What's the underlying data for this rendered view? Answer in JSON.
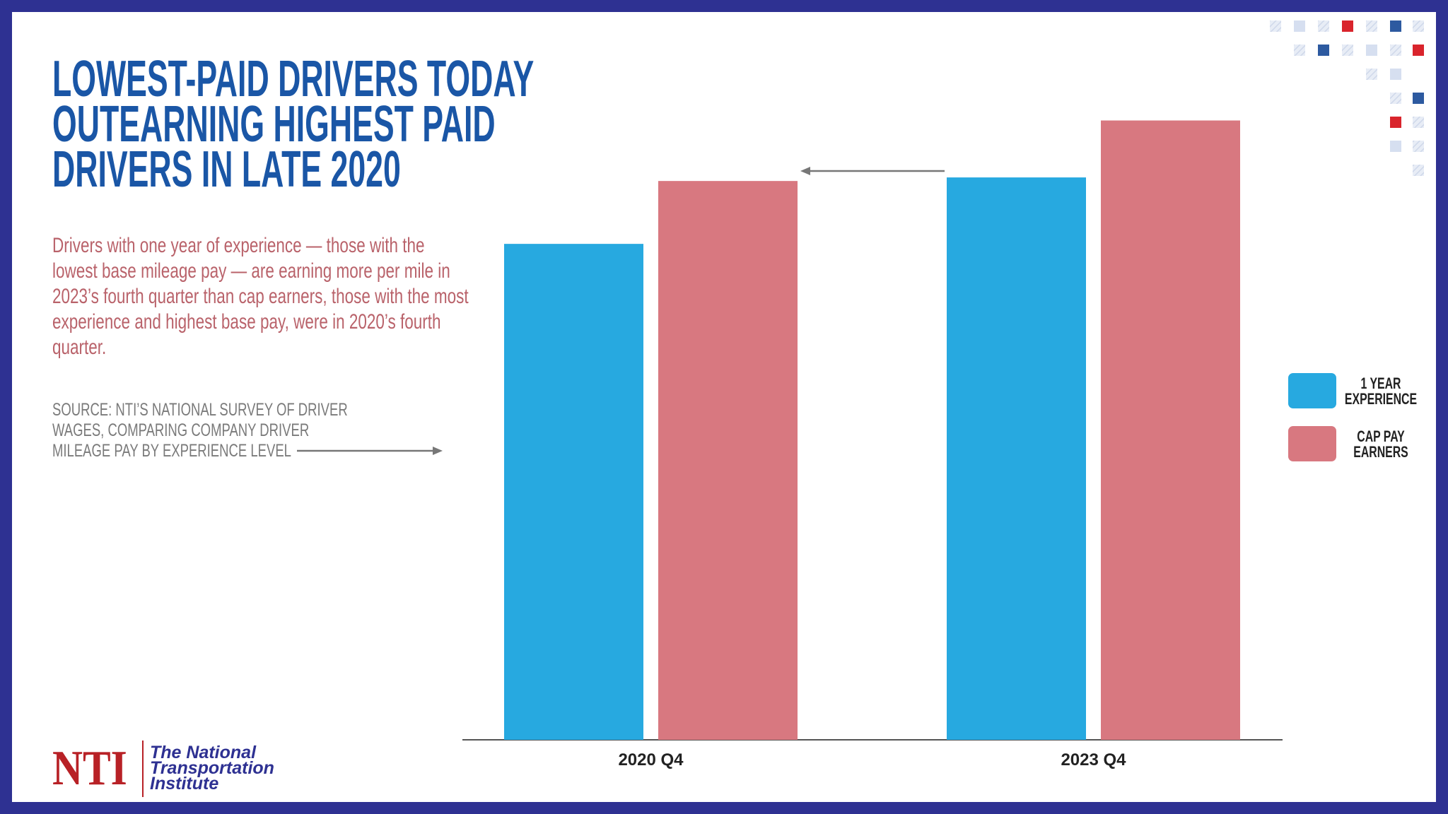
{
  "chart_data": {
    "type": "bar",
    "title": "LOWEST-PAID DRIVERS TODAY OUTEARNING HIGHEST PAID DRIVERS IN LATE 2020",
    "description": "Drivers with one year of experience — those with the lowest base mileage pay — are earning more per mile in 2023’s fourth quarter than cap earners, those with the most experience and highest base pay, were in 2020’s fourth quarter.",
    "source": "SOURCE: NTI’S NATIONAL SURVEY OF DRIVER WAGES, COMPARING COMPANY DRIVER MILEAGE PAY BY EXPERIENCE LEVEL",
    "categories": [
      "2020 Q4",
      "2023 Q4"
    ],
    "series": [
      {
        "name": "1 YEAR EXPERIENCE",
        "color": "#27a9e0",
        "values": [
          41.8,
          47.4
        ]
      },
      {
        "name": "CAP PAY EARNERS",
        "color": "#d87880",
        "values": [
          47.1,
          52.2
        ]
      }
    ],
    "ylim": [
      0,
      53.6
    ]
  },
  "logo": {
    "mark": "NTI",
    "name": "The National Transportation Institute"
  }
}
